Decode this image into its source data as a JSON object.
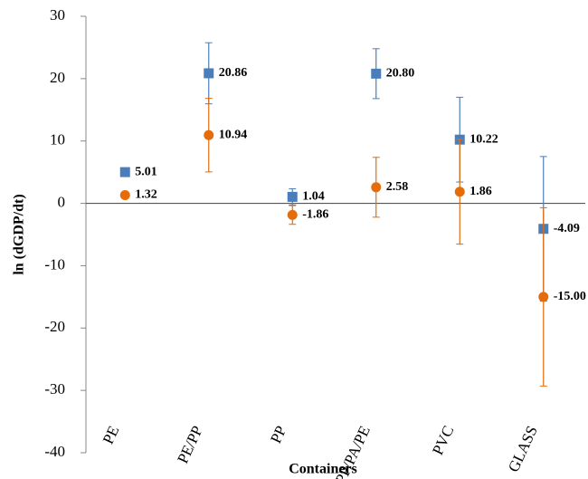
{
  "chart_data": {
    "type": "errorpoint",
    "x_label": "Containers",
    "y_label": "ln (dGDP/dt)",
    "categories": [
      "PE",
      "PE/PP",
      "PP",
      "PP/PA/PE",
      "PVC",
      "GLASS"
    ],
    "series": [
      {
        "color": "#4a7ebb",
        "marker": "square",
        "values": [
          5.01,
          20.86,
          1.04,
          20.8,
          10.22,
          -4.09
        ],
        "value_labels": [
          "5.01",
          "20.86",
          "1.04",
          "20.80",
          "10.22",
          "-4.09"
        ],
        "errors": [
          0,
          4.9,
          1.3,
          4.0,
          6.8,
          11.6
        ]
      },
      {
        "color": "#e46c0a",
        "marker": "circle",
        "values": [
          1.32,
          10.94,
          -1.86,
          2.58,
          1.86,
          -15.0
        ],
        "value_labels": [
          "1.32",
          "10.94",
          "-1.86",
          "2.58",
          "1.86",
          "-15.00"
        ],
        "errors": [
          0,
          5.9,
          1.5,
          4.8,
          8.4,
          14.3
        ]
      }
    ],
    "ylim": [
      -40,
      30
    ],
    "yticks": [
      -40,
      -30,
      -20,
      -10,
      0,
      10,
      20,
      30
    ]
  }
}
